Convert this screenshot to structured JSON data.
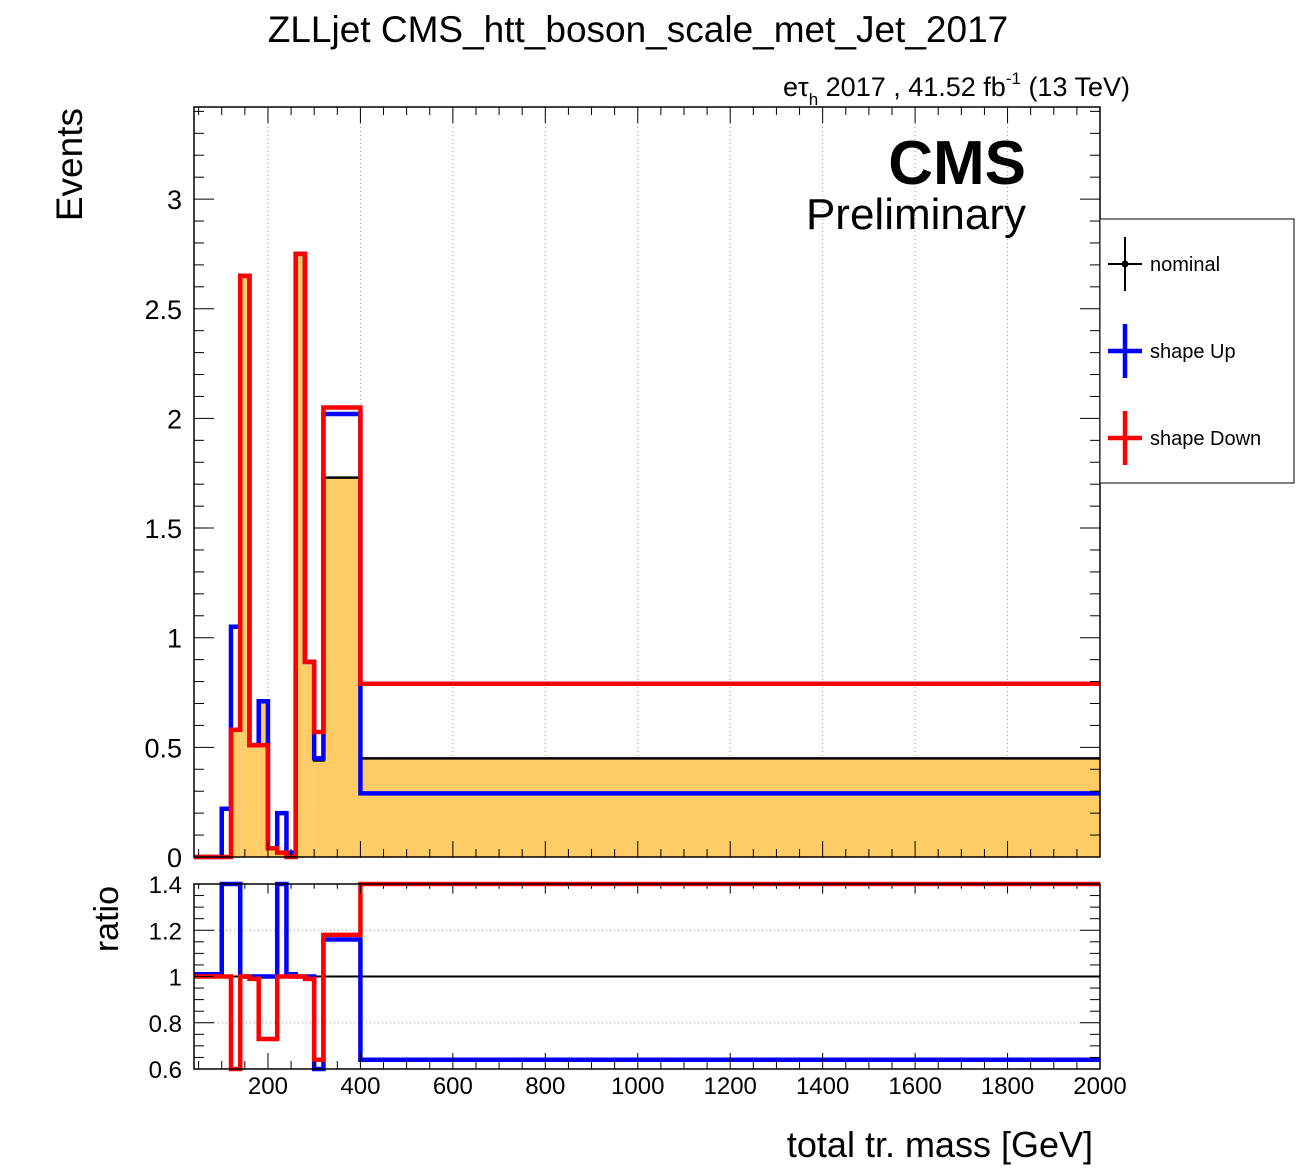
{
  "chart_data": [
    {
      "type": "line",
      "plot": "main",
      "title": "ZLLjet CMS_htt_boson_scale_met_Jet_2017",
      "lumi_label": {
        "channel_base": "eτ",
        "channel_sub": "h",
        "text": " 2017 , 41.52 fb",
        "sup": "-1",
        "energy": " (13 TeV)"
      },
      "cms_label": "CMS",
      "prelim_label": "Preliminary",
      "ylabel": "Events",
      "xlim": [
        40,
        2000
      ],
      "ylim": [
        0,
        3.42
      ],
      "grid": "vertical dotted",
      "legend_position": "right, outside plot",
      "bin_edges": [
        40,
        80,
        100,
        120,
        140,
        160,
        180,
        200,
        220,
        240,
        260,
        280,
        300,
        320,
        350,
        400,
        2000
      ],
      "series": [
        {
          "name": "nominal",
          "color": "#000000",
          "fill": "#ffcc66",
          "values": [
            0.0,
            0.0,
            0.0,
            0.58,
            2.65,
            0.51,
            0.71,
            0.04,
            0.02,
            0.02,
            2.75,
            0.89,
            0.44,
            1.73,
            1.73,
            0.45
          ]
        },
        {
          "name": "shape Up",
          "color": "#0000ff",
          "values": [
            0.0,
            0.0,
            0.22,
            1.05,
            2.65,
            0.51,
            0.71,
            0.04,
            0.2,
            0.02,
            2.75,
            0.89,
            0.45,
            2.02,
            2.02,
            0.29
          ]
        },
        {
          "name": "shape Down",
          "color": "#ff0000",
          "values": [
            0.0,
            0.0,
            0.0,
            0.58,
            2.65,
            0.51,
            0.51,
            0.04,
            0.02,
            0.0,
            2.75,
            0.89,
            0.57,
            2.05,
            2.05,
            0.79
          ]
        }
      ]
    },
    {
      "type": "line",
      "plot": "ratio",
      "ylabel": "ratio",
      "xlabel": "total tr. mass [GeV]",
      "xlim": [
        40,
        2000
      ],
      "ylim": [
        0.6,
        1.4
      ],
      "grid": "horizontal dotted",
      "reference_line": 1,
      "bin_edges": [
        40,
        80,
        100,
        120,
        140,
        160,
        180,
        200,
        220,
        240,
        260,
        280,
        300,
        320,
        350,
        400,
        2000
      ],
      "series": [
        {
          "name": "shape Up",
          "color": "#0000ff",
          "values": [
            1.01,
            1.01,
            1.5,
            1.5,
            1.0,
            1.0,
            1.0,
            1.0,
            1.5,
            1.01,
            1.0,
            1.0,
            0.6,
            1.16,
            1.16,
            0.64
          ]
        },
        {
          "name": "shape Down",
          "color": "#ff0000",
          "values": [
            1.0,
            1.0,
            1.0,
            0.59,
            1.0,
            0.99,
            0.73,
            0.73,
            1.0,
            1.0,
            1.0,
            0.99,
            0.64,
            1.18,
            1.18,
            1.5
          ]
        }
      ],
      "yticks": [
        "0.6",
        "0.8",
        "1",
        "1.2",
        "1.4"
      ],
      "xticks": [
        "200",
        "400",
        "600",
        "800",
        "1000",
        "1200",
        "1400",
        "1600",
        "1800",
        "2000"
      ]
    }
  ]
}
